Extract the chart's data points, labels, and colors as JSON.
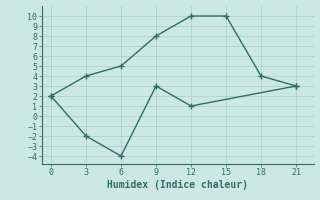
{
  "line1_x": [
    0,
    3,
    6,
    9,
    12,
    15,
    18,
    21
  ],
  "line1_y": [
    2,
    4,
    5,
    8,
    10,
    10,
    4,
    3
  ],
  "line2_x": [
    0,
    3,
    6,
    9,
    12,
    21
  ],
  "line2_y": [
    2,
    -2,
    -4,
    3,
    1,
    3
  ],
  "color": "#2d6e65",
  "bg_color": "#cce8e2",
  "grid_color": "#a8cdc7",
  "xlabel": "Humidex (Indice chaleur)",
  "xlim": [
    -0.8,
    22.5
  ],
  "ylim": [
    -4.8,
    11.0
  ],
  "xticks": [
    0,
    3,
    6,
    9,
    12,
    15,
    18,
    21
  ],
  "yticks": [
    -4,
    -3,
    -2,
    -1,
    0,
    1,
    2,
    3,
    4,
    5,
    6,
    7,
    8,
    9,
    10
  ],
  "marker": "+",
  "markersize": 4,
  "markeredgewidth": 1.0,
  "linewidth": 1.0,
  "xlabel_fontsize": 7,
  "tick_fontsize": 6
}
